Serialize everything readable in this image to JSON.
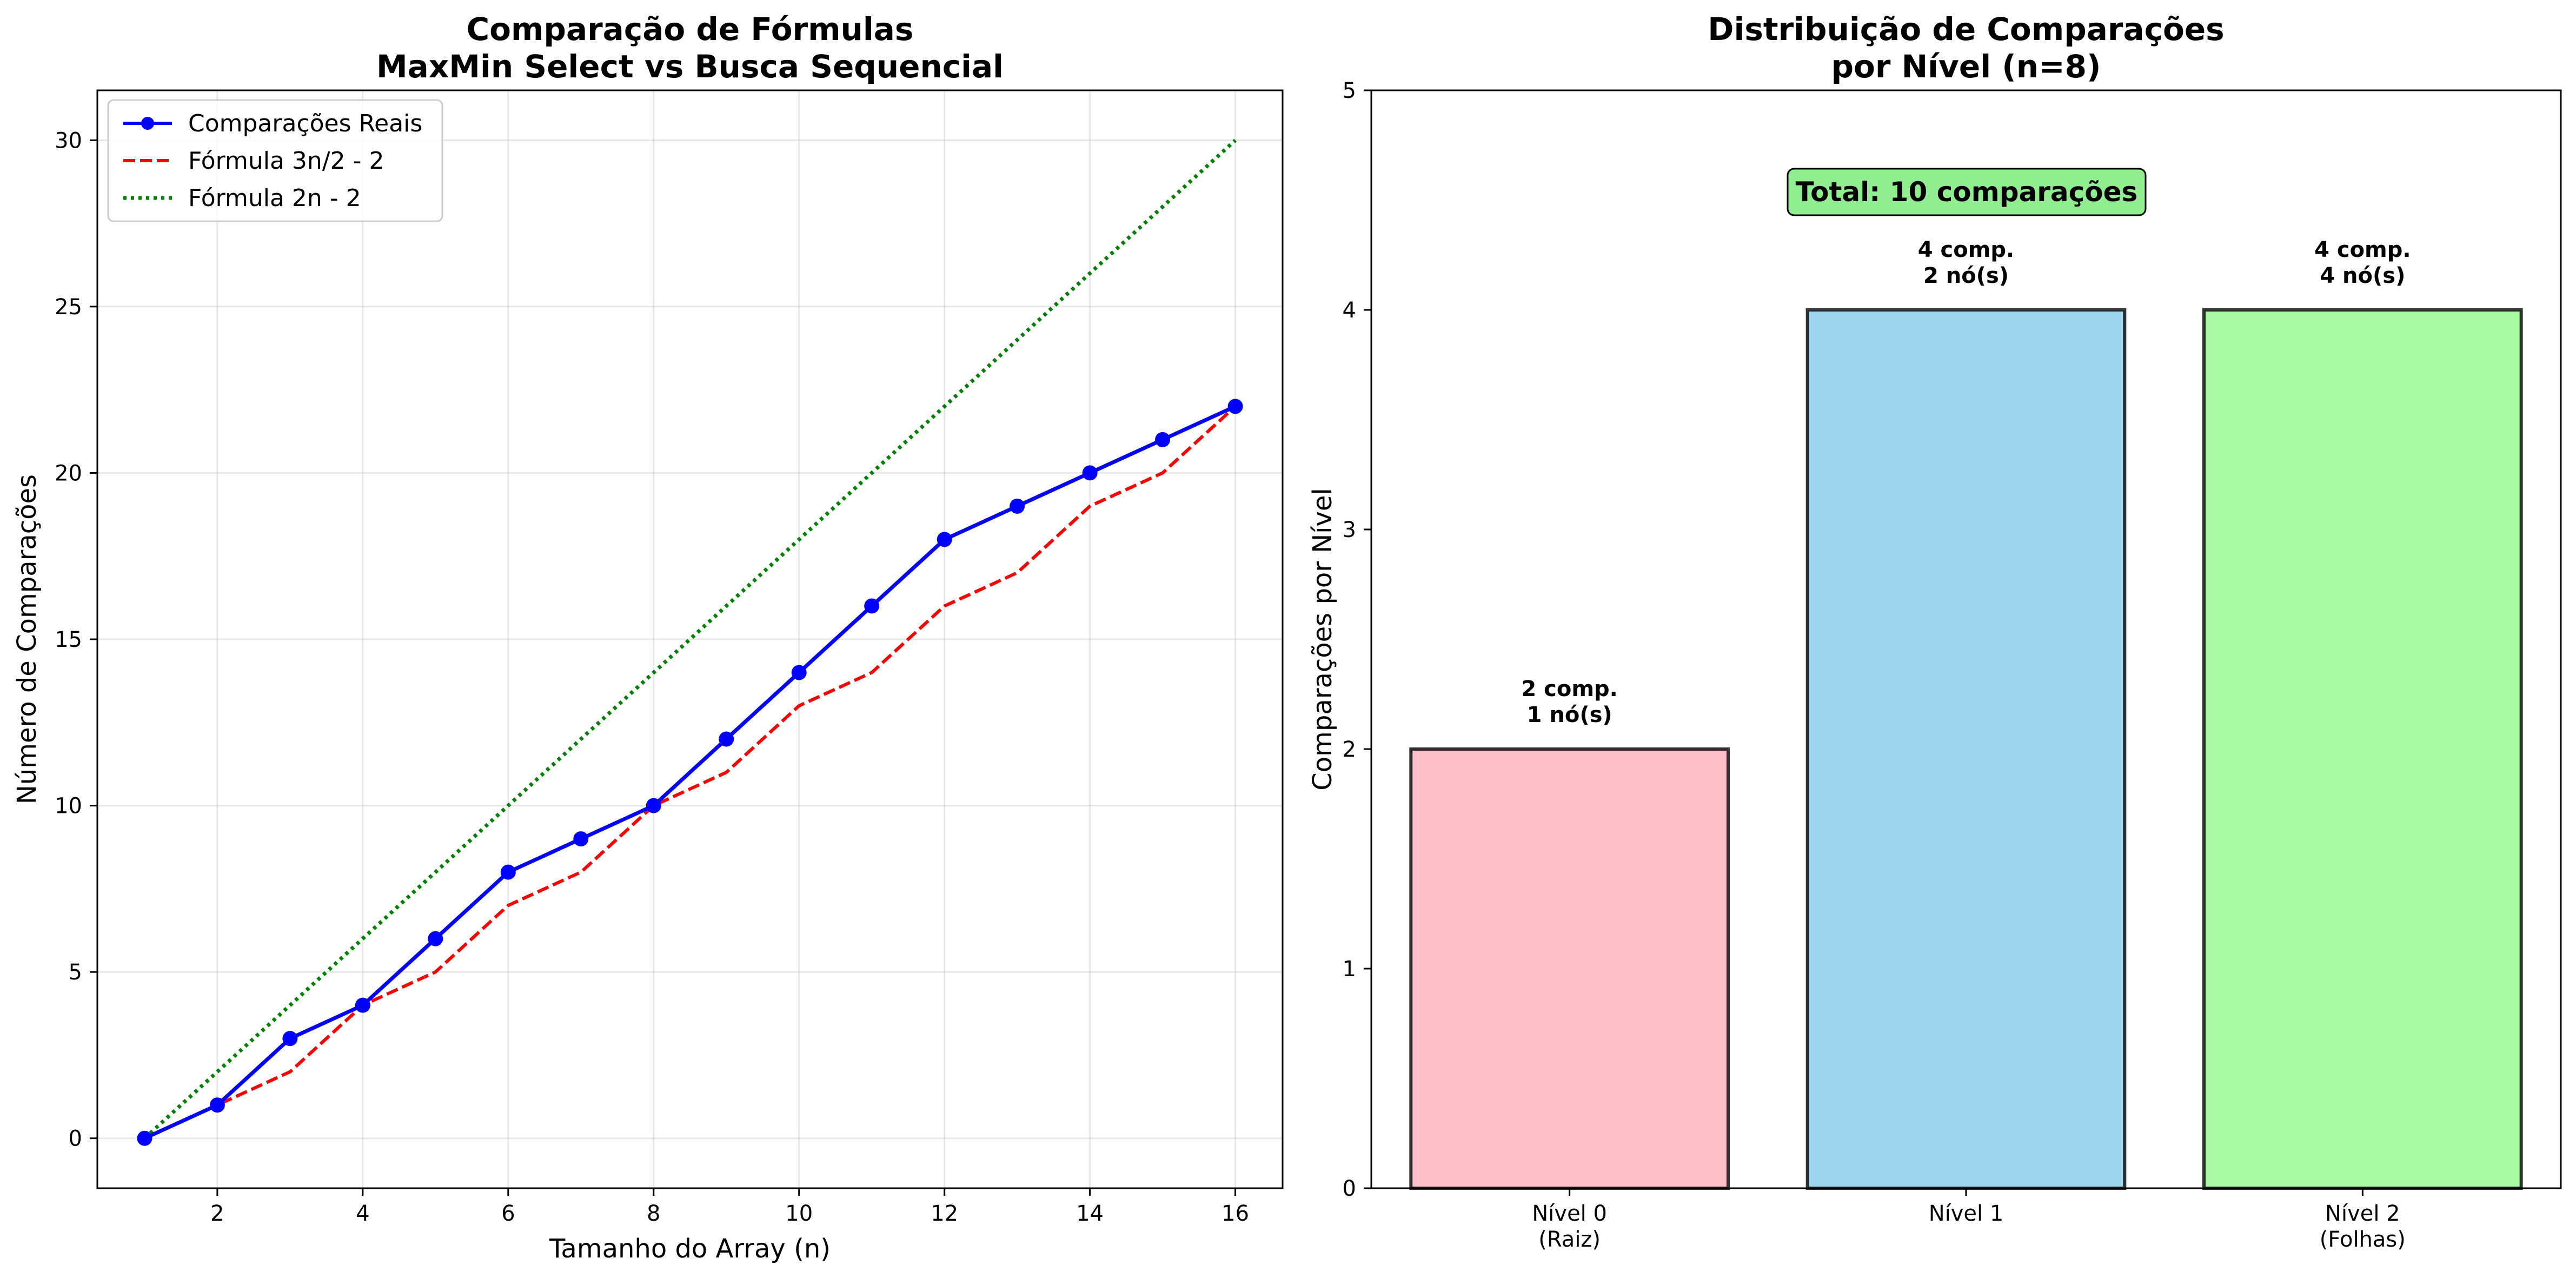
{
  "chart_data": [
    {
      "type": "line",
      "title": "Comparação de Fórmulas",
      "subtitle": "MaxMin Select vs Busca Sequencial",
      "xlabel": "Tamanho do Array (n)",
      "ylabel": "Número de Comparações",
      "xlim": [
        0.35,
        16.65
      ],
      "ylim": [
        -1.5,
        31.5
      ],
      "xticks": [
        2,
        4,
        6,
        8,
        10,
        12,
        14,
        16
      ],
      "yticks": [
        0,
        5,
        10,
        15,
        20,
        25,
        30
      ],
      "grid": true,
      "legend_position": "upper-left",
      "x": [
        1,
        2,
        3,
        4,
        5,
        6,
        7,
        8,
        9,
        10,
        11,
        12,
        13,
        14,
        15,
        16
      ],
      "series": [
        {
          "name": "Comparações Reais",
          "color": "#0000ff",
          "style": "solid-markers",
          "values": [
            0,
            1,
            3,
            4,
            6,
            8,
            9,
            10,
            12,
            14,
            16,
            18,
            19,
            20,
            21,
            22
          ]
        },
        {
          "name": "Fórmula 3n/2 - 2",
          "color": "#ff0000",
          "style": "dashed",
          "values": [
            0,
            1,
            2,
            4,
            5,
            7,
            8,
            10,
            11,
            13,
            14,
            16,
            17,
            19,
            20,
            22
          ]
        },
        {
          "name": "Fórmula 2n - 2",
          "color": "#008000",
          "style": "dotted",
          "values": [
            0,
            2,
            4,
            6,
            8,
            10,
            12,
            14,
            16,
            18,
            20,
            22,
            24,
            26,
            28,
            30
          ]
        }
      ]
    },
    {
      "type": "bar",
      "title": "Distribuição de Comparações",
      "subtitle": "por Nível (n=8)",
      "xlabel": "",
      "ylabel": "Comparações por Nível",
      "ylim": [
        0,
        5
      ],
      "yticks": [
        0,
        1,
        2,
        3,
        4,
        5
      ],
      "grid": false,
      "categories": [
        {
          "line1": "Nível 0",
          "line2": "(Raiz)"
        },
        {
          "line1": "Nível 1",
          "line2": ""
        },
        {
          "line1": "Nível 2",
          "line2": "(Folhas)"
        }
      ],
      "values": [
        2,
        4,
        4
      ],
      "colors": [
        "#ffc0cb",
        "#a0d6ed",
        "#aafaa6"
      ],
      "bar_labels": [
        {
          "line1": "2 comp.",
          "line2": "1 nó(s)"
        },
        {
          "line1": "4 comp.",
          "line2": "2 nó(s)"
        },
        {
          "line1": "4 comp.",
          "line2": "4 nó(s)"
        }
      ],
      "annotation": "Total: 10 comparações",
      "annotation_color": "#90ee90"
    }
  ]
}
